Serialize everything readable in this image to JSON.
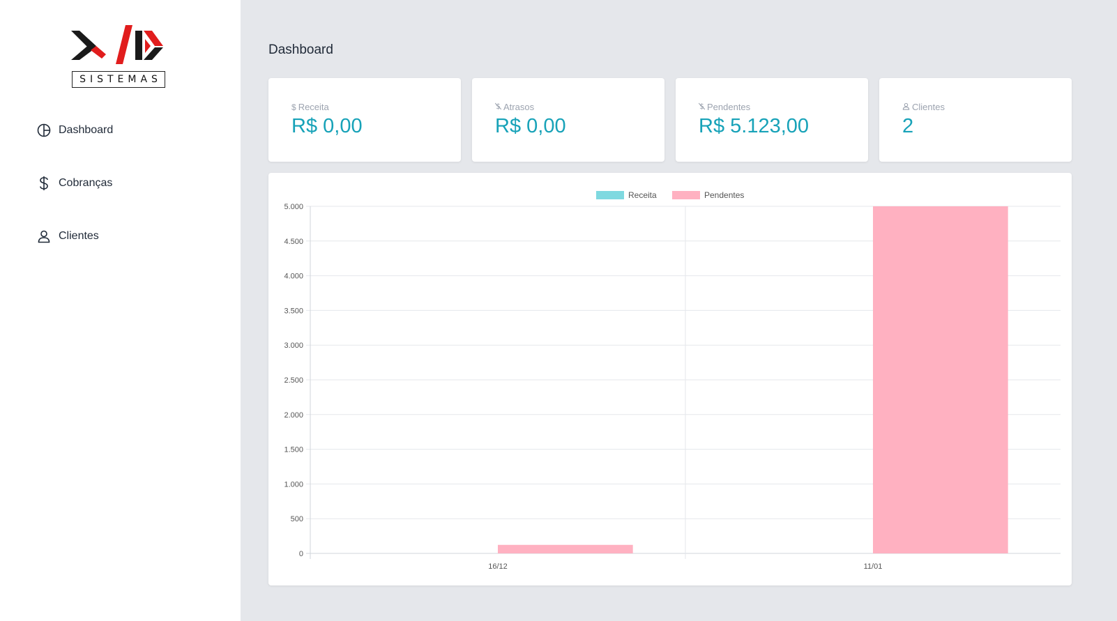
{
  "brand": {
    "logo_text": "SISTEMAS"
  },
  "sidebar": {
    "items": [
      {
        "label": "Dashboard",
        "icon": "pie-chart-icon"
      },
      {
        "label": "Cobranças",
        "icon": "dollar-icon"
      },
      {
        "label": "Clientes",
        "icon": "user-icon"
      }
    ]
  },
  "page": {
    "title": "Dashboard"
  },
  "cards": [
    {
      "label": "Receita",
      "value": "R$ 0,00",
      "icon": "dollar-icon"
    },
    {
      "label": "Atrasos",
      "value": "R$ 0,00",
      "icon": "dollar-slash-icon"
    },
    {
      "label": "Pendentes",
      "value": "R$ 5.123,00",
      "icon": "dollar-slash-icon"
    },
    {
      "label": "Clientes",
      "value": "2",
      "icon": "user-icon"
    }
  ],
  "colors": {
    "accent": "#17a2b8",
    "receita": "#7fd9e0",
    "pendentes": "#ffb1c1",
    "background": "#e5e7eb"
  },
  "chart_data": {
    "type": "bar",
    "categories": [
      "16/12",
      "11/01"
    ],
    "series": [
      {
        "name": "Receita",
        "values": [
          0,
          0
        ]
      },
      {
        "name": "Pendentes",
        "values": [
          123,
          5000
        ]
      }
    ],
    "ylim": [
      0,
      5000
    ],
    "yticks": [
      0,
      500,
      1000,
      1500,
      2000,
      2500,
      3000,
      3500,
      4000,
      4500,
      5000
    ],
    "ytick_labels": [
      "0",
      "500",
      "1.000",
      "1.500",
      "2.000",
      "2.500",
      "3.000",
      "3.500",
      "4.000",
      "4.500",
      "5.000"
    ],
    "legend": "top-center",
    "grid": true
  }
}
